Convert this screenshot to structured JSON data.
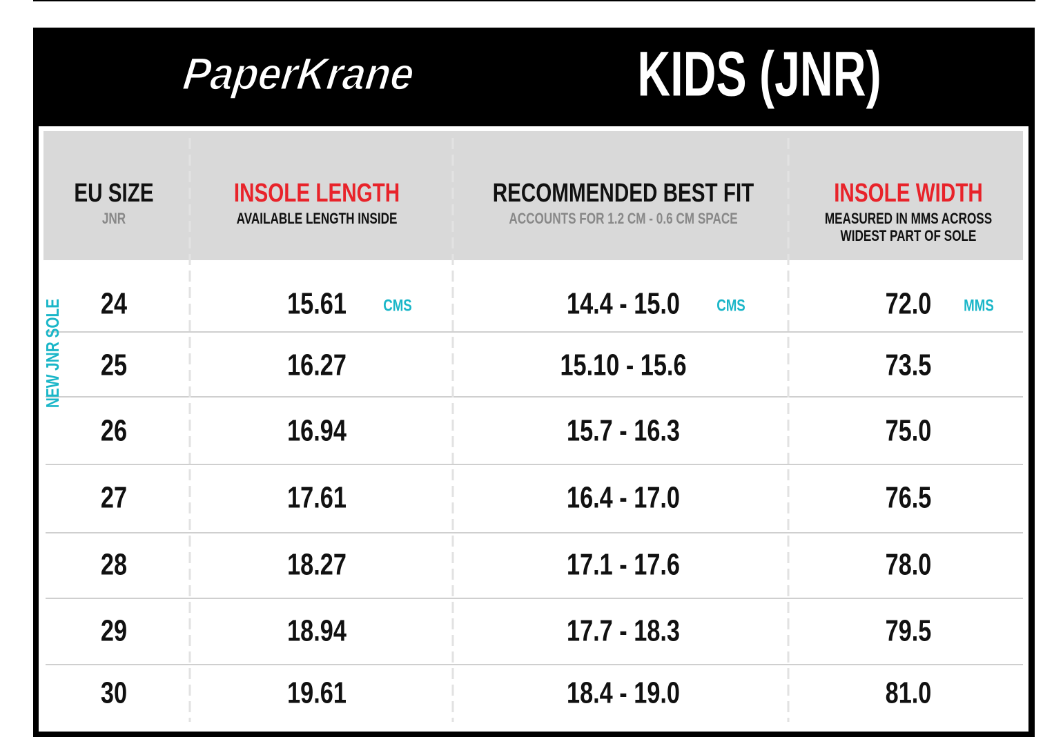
{
  "header": {
    "logo": "PaperKrane",
    "title": "KIDS (JNR)"
  },
  "table": {
    "columns": [
      {
        "title": "EU SIZE",
        "subtitle": [
          "JNR"
        ]
      },
      {
        "title": "INSOLE LENGTH",
        "subtitle": [
          "AVAILABLE LENGTH INSIDE"
        ]
      },
      {
        "title": "RECOMMENDED BEST FIT",
        "subtitle": [
          "ACCOUNTS FOR  1.2 CM - 0.6 CM SPACE"
        ]
      },
      {
        "title": "INSOLE WIDTH",
        "subtitle": [
          "MEASURED IN MMS ACROSS",
          "WIDEST PART OF SOLE"
        ]
      }
    ],
    "units": [
      "CMS",
      "CMS",
      "MMS"
    ],
    "side_label": "NEW JNR SOLE",
    "rows": [
      [
        "24",
        "15.61",
        "14.4 - 15.0",
        "72.0"
      ],
      [
        "25",
        "16.27",
        "15.10 - 15.6",
        "73.5"
      ],
      [
        "26",
        "16.94",
        "15.7 - 16.3",
        "75.0"
      ],
      [
        "27",
        "17.61",
        "16.4 - 17.0",
        "76.5"
      ],
      [
        "28",
        "18.27",
        "17.1 - 17.6",
        "78.0"
      ],
      [
        "29",
        "18.94",
        "17.7 - 18.3",
        "79.5"
      ],
      [
        "30",
        "19.61",
        "18.4 - 19.0",
        "81.0"
      ]
    ]
  }
}
